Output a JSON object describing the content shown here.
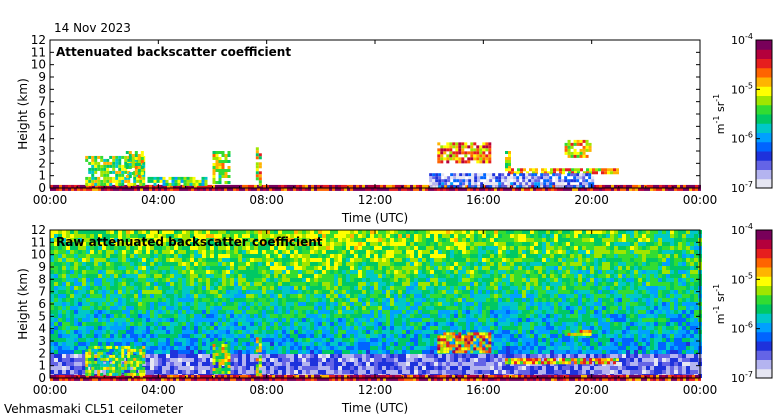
{
  "header": {
    "date": "14 Nov 2023"
  },
  "footer": {
    "instrument": "Vehmasmaki CL51 ceilometer"
  },
  "colors": {
    "colormap": [
      "#e6e6f2",
      "#b4b4f0",
      "#6464e6",
      "#1e32dc",
      "#0064ff",
      "#00a0ff",
      "#00c8c8",
      "#00c864",
      "#32dc32",
      "#a0e600",
      "#ffff00",
      "#ffb400",
      "#ff6400",
      "#e61e1e",
      "#b4003c",
      "#78005a"
    ],
    "frame": "#000000",
    "background": "#ffffff"
  },
  "chart_data": [
    {
      "type": "heatmap",
      "title": "Attenuated backscatter coefficient",
      "xlabel": "Time (UTC)",
      "ylabel": "Height (km)",
      "x_ticks": [
        "00:00",
        "04:00",
        "08:00",
        "12:00",
        "16:00",
        "20:00",
        "00:00"
      ],
      "x_range_hours": [
        0,
        24
      ],
      "y_ticks": [
        0,
        1,
        2,
        3,
        4,
        5,
        6,
        7,
        8,
        9,
        10,
        11,
        12
      ],
      "ylim_km": [
        0,
        12
      ],
      "colorbar": {
        "scale": "log",
        "range": [
          1e-07,
          0.0001
        ],
        "ticks": [
          {
            "base": "10",
            "exp": "-4",
            "value": 0.0001
          },
          {
            "base": "10",
            "exp": "-5",
            "value": 1e-05
          },
          {
            "base": "10",
            "exp": "-6",
            "value": 1e-06
          },
          {
            "base": "10",
            "exp": "-7",
            "value": 1e-07
          }
        ],
        "unit_a": "m",
        "unit_a_exp": "-1",
        "unit_b": "sr",
        "unit_b_exp": "-1"
      },
      "features": [
        {
          "t0": 0.0,
          "t1": 24.0,
          "h0": 0.0,
          "h1": 0.25,
          "level": 0.9
        },
        {
          "t0": 1.3,
          "t1": 3.5,
          "h0": 0.3,
          "h1": 2.6,
          "level": 0.55
        },
        {
          "t0": 2.8,
          "t1": 3.4,
          "h0": 1.0,
          "h1": 3.0,
          "level": 0.6
        },
        {
          "t0": 3.6,
          "t1": 5.8,
          "h0": 0.3,
          "h1": 0.9,
          "level": 0.5
        },
        {
          "t0": 6.0,
          "t1": 6.6,
          "h0": 0.4,
          "h1": 3.0,
          "level": 0.6
        },
        {
          "t0": 7.6,
          "t1": 7.8,
          "h0": 0.3,
          "h1": 3.3,
          "level": 0.65
        },
        {
          "t0": 14.3,
          "t1": 16.2,
          "h0": 2.2,
          "h1": 3.7,
          "level": 0.75
        },
        {
          "t0": 16.8,
          "t1": 17.0,
          "h0": 1.6,
          "h1": 3.0,
          "level": 0.6
        },
        {
          "t0": 16.8,
          "t1": 21.0,
          "h0": 1.3,
          "h1": 1.6,
          "level": 0.7
        },
        {
          "t0": 19.0,
          "t1": 19.9,
          "h0": 2.6,
          "h1": 3.9,
          "level": 0.7
        },
        {
          "t0": 14.0,
          "t1": 20.0,
          "h0": 0.2,
          "h1": 1.2,
          "level": 0.15
        }
      ]
    },
    {
      "type": "heatmap",
      "title": "Raw attenuated backscatter coefficient",
      "xlabel": "Time (UTC)",
      "ylabel": "Height (km)",
      "x_ticks": [
        "00:00",
        "04:00",
        "08:00",
        "12:00",
        "16:00",
        "20:00",
        "00:00"
      ],
      "x_range_hours": [
        0,
        24
      ],
      "y_ticks": [
        0,
        1,
        2,
        3,
        4,
        5,
        6,
        7,
        8,
        9,
        10,
        11,
        12
      ],
      "ylim_km": [
        0,
        12
      ],
      "colorbar": {
        "scale": "log",
        "range": [
          1e-07,
          0.0001
        ],
        "ticks": [
          {
            "base": "10",
            "exp": "-4",
            "value": 0.0001
          },
          {
            "base": "10",
            "exp": "-5",
            "value": 1e-05
          },
          {
            "base": "10",
            "exp": "-6",
            "value": 1e-06
          },
          {
            "base": "10",
            "exp": "-7",
            "value": 1e-07
          }
        ],
        "unit_a": "m",
        "unit_a_exp": "-1",
        "unit_b": "sr",
        "unit_b_exp": "-1"
      },
      "background_noise": {
        "low_km": 2.0,
        "high_km": 12.0,
        "level_low": 0.35,
        "level_high": 0.62
      },
      "features": [
        {
          "t0": 0.0,
          "t1": 24.0,
          "h0": 0.0,
          "h1": 0.25,
          "level": 0.9
        },
        {
          "t0": 1.3,
          "t1": 3.5,
          "h0": 0.3,
          "h1": 2.6,
          "level": 0.55
        },
        {
          "t0": 6.0,
          "t1": 6.6,
          "h0": 0.4,
          "h1": 3.0,
          "level": 0.6
        },
        {
          "t0": 7.6,
          "t1": 7.8,
          "h0": 0.3,
          "h1": 3.3,
          "level": 0.65
        },
        {
          "t0": 14.3,
          "t1": 16.2,
          "h0": 2.2,
          "h1": 3.7,
          "level": 0.75
        },
        {
          "t0": 16.8,
          "t1": 21.0,
          "h0": 1.3,
          "h1": 1.6,
          "level": 0.7
        },
        {
          "t0": 19.0,
          "t1": 19.9,
          "h0": 3.6,
          "h1": 3.9,
          "level": 0.7
        }
      ]
    }
  ]
}
